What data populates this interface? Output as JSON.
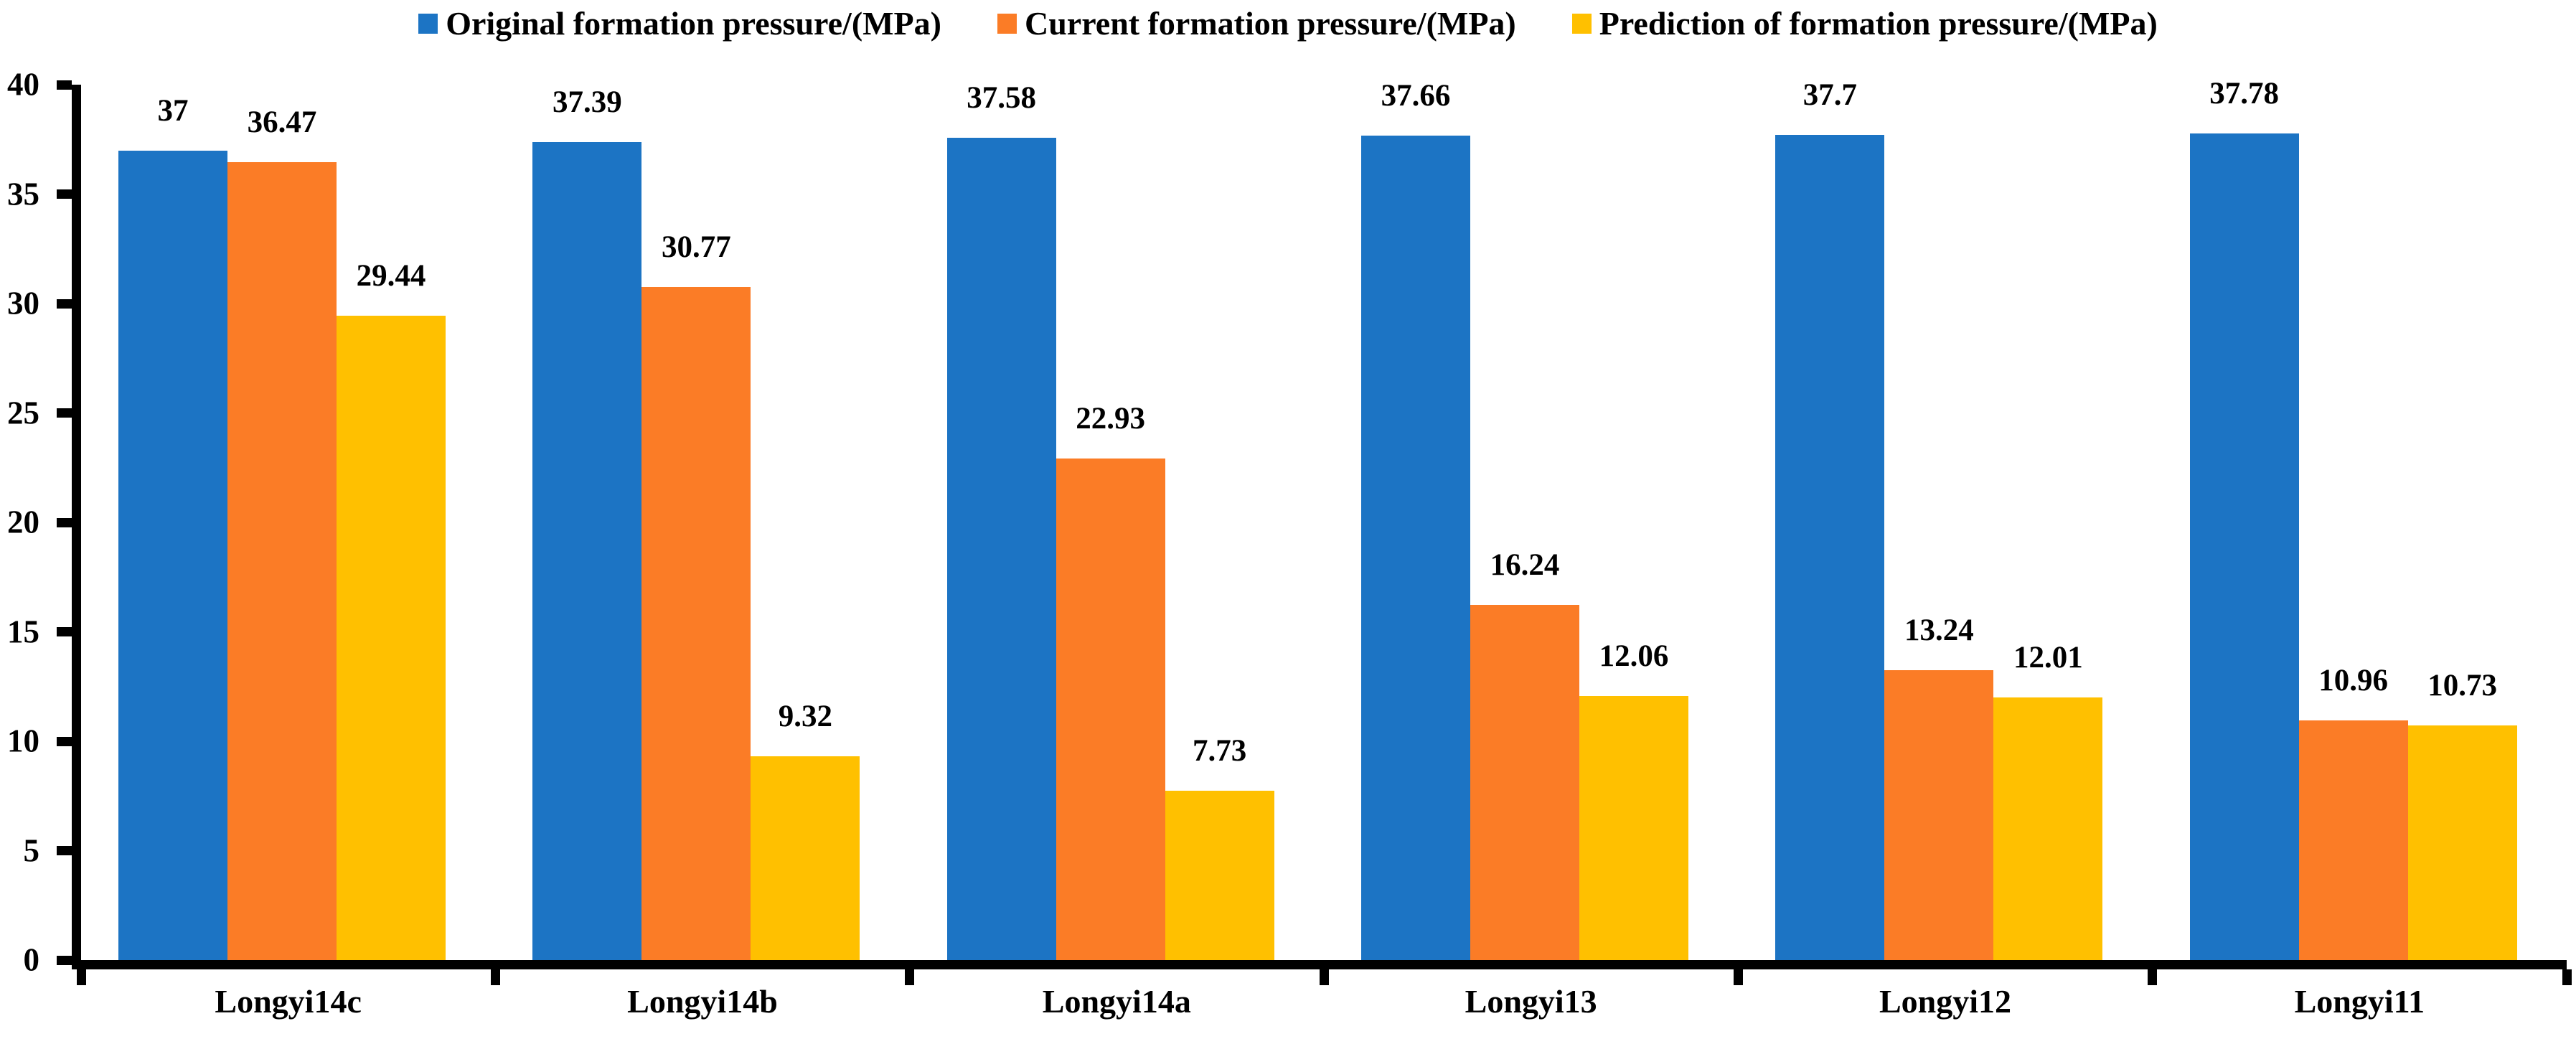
{
  "chart_data": {
    "type": "bar",
    "title": "",
    "xlabel": "",
    "ylabel": "",
    "categories": [
      "Longyi14c",
      "Longyi14b",
      "Longyi14a",
      "Longyi13",
      "Longyi12",
      "Longyi11"
    ],
    "series": [
      {
        "name": "Original formation pressure/(MPa)",
        "color": "#1C74C4",
        "values": [
          37,
          37.39,
          37.58,
          37.66,
          37.7,
          37.78
        ]
      },
      {
        "name": "Current formation pressure/(MPa)",
        "color": "#FB7C26",
        "values": [
          36.47,
          30.77,
          22.93,
          16.24,
          13.24,
          10.96
        ]
      },
      {
        "name": "Prediction of formation pressure/(MPa)",
        "color": "#FFC000",
        "values": [
          29.44,
          9.32,
          7.73,
          12.06,
          12.01,
          10.73
        ]
      }
    ],
    "ylim": [
      0,
      40
    ],
    "yticks": [
      40,
      35,
      30,
      25,
      20,
      15,
      10,
      5,
      0
    ],
    "grid": false,
    "legend_position": "top-center",
    "data_labels": true,
    "axis_color": "#000000",
    "text_color": "#000000",
    "background": "#FFFFFF"
  }
}
